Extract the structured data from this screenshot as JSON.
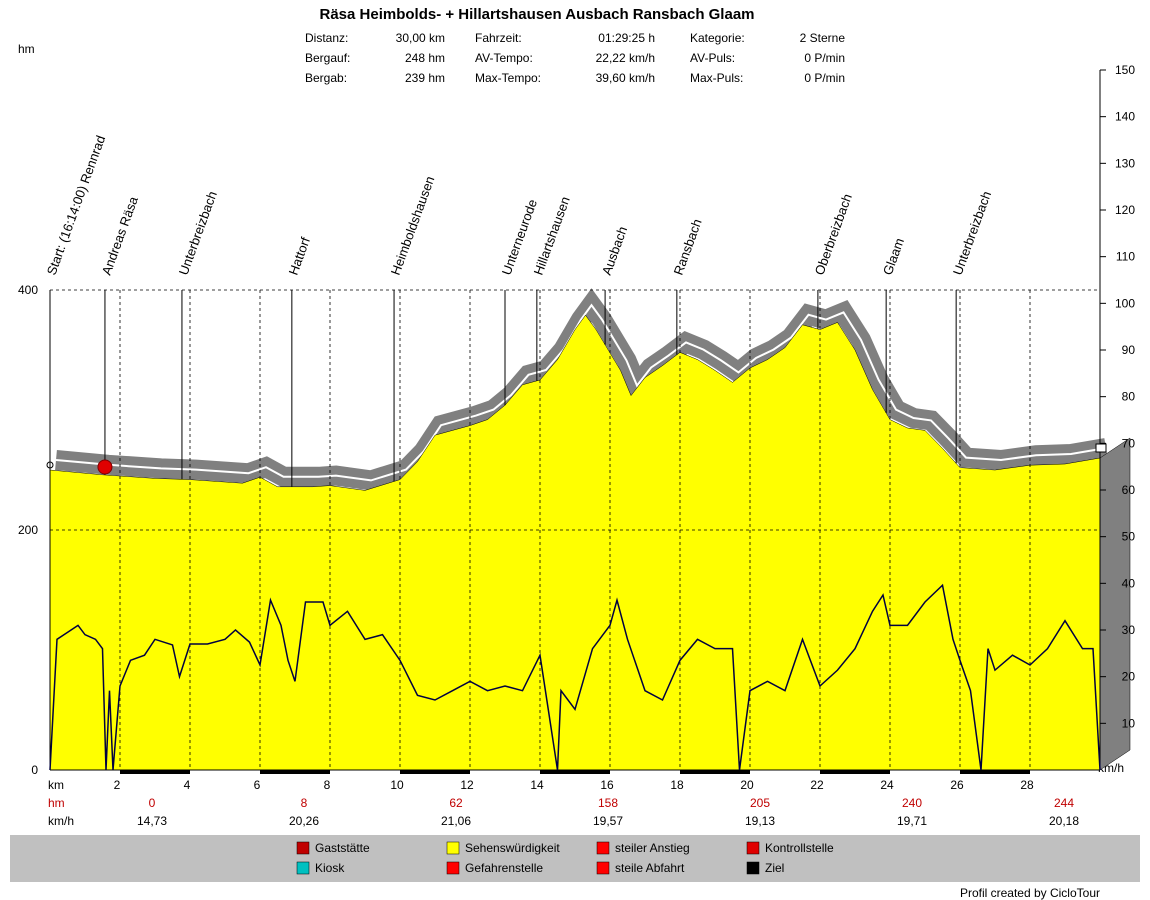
{
  "chart_data": {
    "type": "profile",
    "title": "Räsa Heimbolds- + Hillartshausen Ausbach Ransbach Glaam",
    "stats": [
      [
        "Distanz:",
        "30,00 km",
        "Fahrzeit:",
        "01:29:25 h",
        "Kategorie:",
        "2 Sterne"
      ],
      [
        "Bergauf:",
        "248 hm",
        "AV-Tempo:",
        "22,22 km/h",
        "AV-Puls:",
        "0 P/min"
      ],
      [
        "Bergab:",
        "239 hm",
        "Max-Tempo:",
        "39,60 km/h",
        "Max-Puls:",
        "0 P/min"
      ]
    ],
    "y_label": "hm",
    "y2_label": "km/h",
    "x_label": "km",
    "xlim": [
      0,
      30
    ],
    "xticks": [
      2,
      4,
      6,
      8,
      10,
      12,
      14,
      16,
      18,
      20,
      22,
      24,
      26,
      28
    ],
    "ylim": [
      0,
      400
    ],
    "yticks": [
      0,
      200,
      400
    ],
    "y2lim": [
      0,
      150
    ],
    "y2ticks": [
      10,
      20,
      30,
      40,
      50,
      60,
      70,
      80,
      90,
      100,
      110,
      120,
      130,
      140,
      150
    ],
    "series": [
      {
        "color": "#ffff00",
        "x": [
          0,
          1.5,
          3,
          4,
          5.5,
          6,
          6.5,
          7.5,
          8,
          9,
          10,
          10.5,
          11,
          12,
          12.5,
          13,
          13.5,
          14,
          14.5,
          15,
          15.3,
          15.6,
          16.3,
          16.6,
          17,
          17.5,
          18,
          18.5,
          19,
          19.5,
          20,
          20.5,
          21,
          21.5,
          22,
          22.5,
          23,
          23.5,
          24,
          24.5,
          25,
          25.5,
          26,
          27,
          28,
          29,
          30
        ],
        "values": [
          250,
          246,
          243,
          242,
          239,
          244,
          236,
          236,
          237,
          233,
          242,
          257,
          279,
          287,
          292,
          304,
          321,
          325,
          342,
          367,
          379,
          367,
          333,
          312,
          327,
          337,
          348,
          342,
          333,
          323,
          335,
          342,
          352,
          371,
          367,
          373,
          350,
          317,
          292,
          285,
          283,
          268,
          252,
          250,
          254,
          255,
          260
        ]
      },
      {
        "color": "#000040",
        "axis": "y2",
        "x": [
          0,
          0.2,
          0.5,
          0.8,
          1,
          1.3,
          1.5,
          1.6,
          1.7,
          1.8,
          2,
          2.3,
          2.7,
          3,
          3.5,
          3.7,
          4,
          4.5,
          5,
          5.3,
          5.7,
          6,
          6.3,
          6.6,
          6.8,
          7,
          7.3,
          7.8,
          8,
          8.5,
          9,
          9.5,
          10,
          10.5,
          11,
          11.5,
          12,
          12.5,
          13,
          13.5,
          14,
          14.5,
          14.6,
          15,
          15.5,
          16,
          16.2,
          16.5,
          17,
          17.5,
          18,
          18.5,
          19,
          19.5,
          19.7,
          20,
          20.5,
          21,
          21.5,
          22,
          22.5,
          23,
          23.5,
          23.8,
          24,
          24.5,
          25,
          25.5,
          25.8,
          26,
          26.3,
          26.6,
          26.8,
          27,
          27.5,
          28,
          28.5,
          29,
          29.5,
          29.8,
          30
        ],
        "values": [
          0,
          28,
          29.5,
          31,
          29,
          28,
          26,
          0,
          17,
          0,
          18,
          23.5,
          24.6,
          28,
          26.8,
          20,
          27,
          27,
          28,
          30,
          27.4,
          22.5,
          36.4,
          31,
          23.5,
          19,
          36,
          36,
          31,
          34,
          28,
          29,
          23.5,
          16,
          15,
          17,
          19,
          17,
          18,
          17,
          24.6,
          0,
          17,
          13,
          26,
          31,
          36.4,
          28,
          17,
          15,
          23.5,
          28,
          26,
          26,
          0,
          17,
          19,
          17,
          28,
          18,
          21.4,
          26,
          34,
          37.5,
          31,
          31,
          36,
          39.6,
          28,
          23.5,
          17,
          0,
          26,
          21.4,
          24.6,
          22.5,
          26,
          32,
          26,
          26,
          0
        ]
      }
    ],
    "waypoints": [
      {
        "label": "Start: (16:14:00) Rennrad",
        "km": 0
      },
      {
        "label": "Andreas Räsa",
        "km": 1.57
      },
      {
        "label": "Unterbreizbach",
        "km": 3.77
      },
      {
        "label": "Hattorf",
        "km": 6.91
      },
      {
        "label": "Heimboldshausen",
        "km": 9.83
      },
      {
        "label": "Unterneurode",
        "km": 13
      },
      {
        "label": "Hillartshausen",
        "km": 13.91
      },
      {
        "label": "Ausbach",
        "km": 15.86
      },
      {
        "label": "Ransbach",
        "km": 17.91
      },
      {
        "label": "Oberbreizbach",
        "km": 21.94
      },
      {
        "label": "Glaam",
        "km": 23.89
      },
      {
        "label": "Unterbreizbach",
        "km": 25.89
      }
    ],
    "summary": {
      "hm_label": "hm",
      "hm": [
        "0",
        "8",
        "62",
        "158",
        "205",
        "240",
        "244"
      ],
      "kmh_label": "km/h",
      "kmh": [
        "14,73",
        "20,26",
        "21,06",
        "19,57",
        "19,13",
        "19,71",
        "20,18"
      ]
    },
    "legend": [
      "Gaststätte",
      "Kiosk",
      "Sehenswürdigkeit",
      "Gefahrenstelle",
      "steiler Anstieg",
      "steile Abfahrt",
      "Kontrollstelle",
      "Ziel"
    ],
    "footer": "Profil created by CicloTour"
  }
}
